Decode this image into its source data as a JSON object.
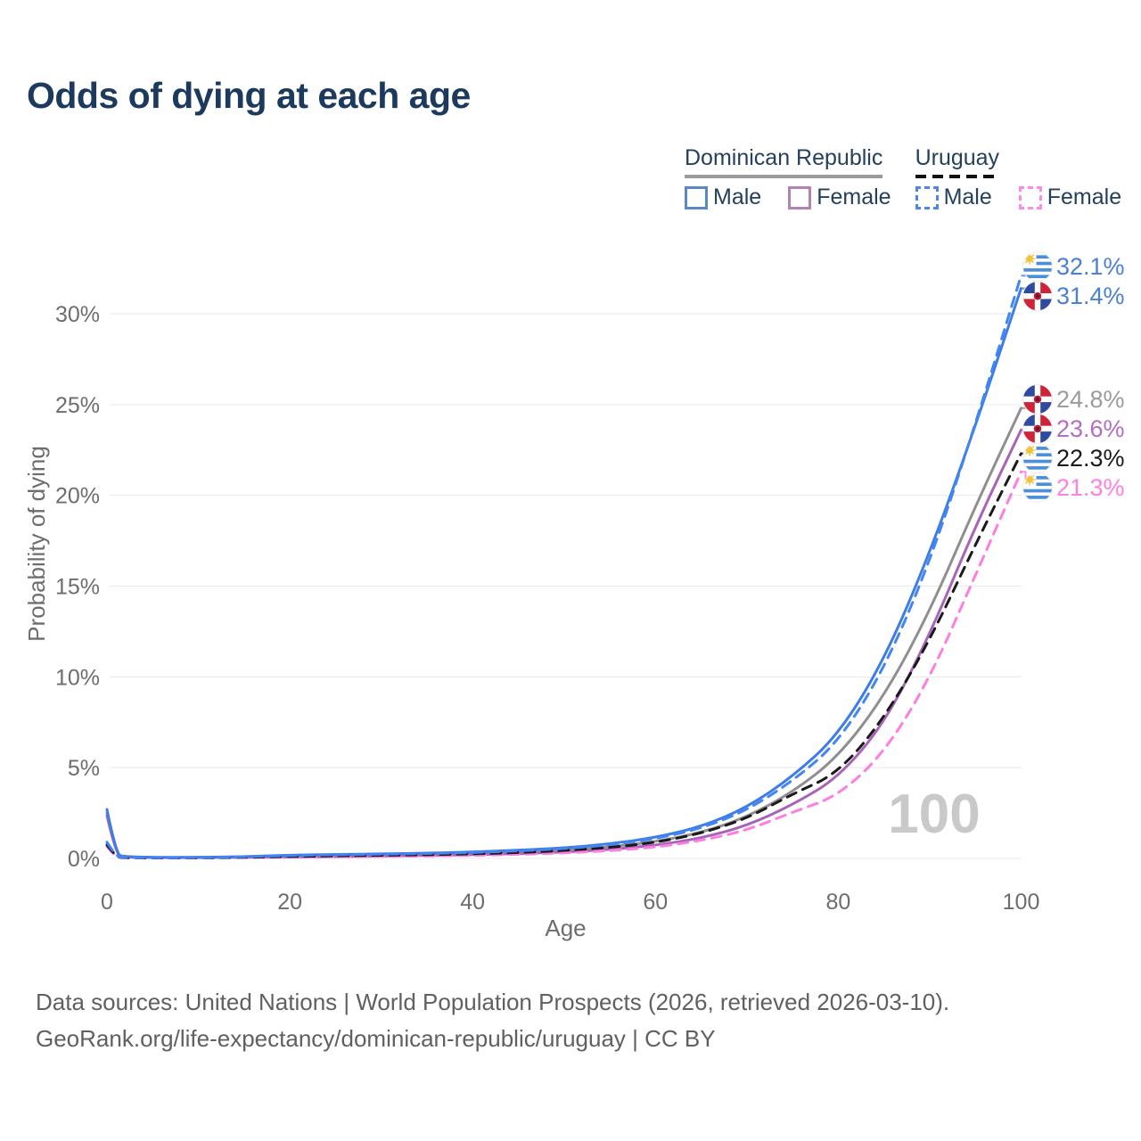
{
  "title": "Odds of dying at each age",
  "legend": {
    "groups": [
      {
        "label": "Dominican Republic",
        "underline_style": "solid",
        "underline_color": "#9a9a9a",
        "items": [
          {
            "label": "Male",
            "color": "#5b87c8",
            "dashed": false
          },
          {
            "label": "Female",
            "color": "#b383b3",
            "dashed": false
          }
        ]
      },
      {
        "label": "Uruguay",
        "underline_style": "dashed",
        "underline_color": "#111111",
        "items": [
          {
            "label": "Male",
            "color": "#4d86ea",
            "dashed": true
          },
          {
            "label": "Female",
            "color": "#ff8ae2",
            "dashed": true
          }
        ]
      }
    ]
  },
  "chart_data": {
    "type": "line",
    "title": "Odds of dying at each age",
    "xlabel": "Age",
    "ylabel": "Probability of dying",
    "xlim": [
      0,
      100
    ],
    "ylim": [
      0,
      33
    ],
    "grid": true,
    "legend_position": "top-right",
    "watermark": "100",
    "x_ticks": [
      {
        "label": "0",
        "value": 0
      },
      {
        "label": "20",
        "value": 20
      },
      {
        "label": "40",
        "value": 40
      },
      {
        "label": "60",
        "value": 60
      },
      {
        "label": "80",
        "value": 80
      },
      {
        "label": "100",
        "value": 100
      }
    ],
    "y_ticks": [
      {
        "label": "0%",
        "value": 0
      },
      {
        "label": "5%",
        "value": 5
      },
      {
        "label": "10%",
        "value": 10
      },
      {
        "label": "15%",
        "value": 15
      },
      {
        "label": "20%",
        "value": 20
      },
      {
        "label": "25%",
        "value": 25
      },
      {
        "label": "30%",
        "value": 30
      }
    ],
    "ages": [
      0,
      1,
      2,
      5,
      10,
      15,
      20,
      25,
      30,
      35,
      40,
      45,
      50,
      55,
      60,
      65,
      70,
      75,
      80,
      85,
      90,
      95,
      100
    ],
    "series": [
      {
        "key": "dominican-republic-total",
        "name": "Dominican Republic",
        "flag": "do",
        "color": "#8f8f8f",
        "dashed": false,
        "end_label": "24.8%",
        "end_value": 24.8,
        "label_color": "#9b9b9b",
        "values": [
          2.5,
          0.17,
          0.09,
          0.05,
          0.05,
          0.08,
          0.13,
          0.16,
          0.19,
          0.22,
          0.27,
          0.35,
          0.46,
          0.63,
          0.92,
          1.42,
          2.28,
          3.65,
          5.6,
          8.9,
          13.6,
          19.4,
          24.8
        ]
      },
      {
        "key": "dominican-republic-female",
        "name": "Dominican Republic Female",
        "flag": "do",
        "color": "#a864b8",
        "dashed": false,
        "end_label": "23.6%",
        "end_value": 23.6,
        "label_color": "#b36cc2",
        "values": [
          2.35,
          0.15,
          0.08,
          0.05,
          0.04,
          0.06,
          0.08,
          0.1,
          0.13,
          0.16,
          0.2,
          0.26,
          0.35,
          0.49,
          0.72,
          1.12,
          1.8,
          2.95,
          4.45,
          7.4,
          12.3,
          18.3,
          23.6
        ]
      },
      {
        "key": "uruguay-female",
        "name": "Uruguay Female",
        "flag": "uy",
        "color": "#ff7de1",
        "dashed": true,
        "end_label": "21.3%",
        "end_value": 21.3,
        "label_color": "#ff80e4",
        "values": [
          0.65,
          0.05,
          0.03,
          0.03,
          0.03,
          0.05,
          0.07,
          0.09,
          0.11,
          0.13,
          0.17,
          0.22,
          0.3,
          0.42,
          0.62,
          0.98,
          1.55,
          2.55,
          3.45,
          5.8,
          9.9,
          15.6,
          21.3
        ]
      },
      {
        "key": "uruguay-total",
        "name": "Uruguay",
        "flag": "uy",
        "color": "#1a1a1a",
        "dashed": true,
        "end_label": "22.3%",
        "end_value": 22.3,
        "label_color": "#1a1a1a",
        "values": [
          0.75,
          0.07,
          0.04,
          0.03,
          0.03,
          0.06,
          0.11,
          0.14,
          0.17,
          0.2,
          0.25,
          0.32,
          0.43,
          0.6,
          0.88,
          1.38,
          2.2,
          3.55,
          4.7,
          7.7,
          12.0,
          17.3,
          22.3
        ]
      },
      {
        "key": "dominican-republic-male",
        "name": "Dominican Republic Male",
        "flag": "do",
        "color": "#3e7de6",
        "dashed": false,
        "end_label": "31.4%",
        "end_value": 31.4,
        "label_color": "#4b80d2",
        "values": [
          2.7,
          0.2,
          0.1,
          0.06,
          0.06,
          0.1,
          0.18,
          0.22,
          0.25,
          0.29,
          0.35,
          0.45,
          0.58,
          0.8,
          1.15,
          1.75,
          2.8,
          4.5,
          6.8,
          10.9,
          16.8,
          23.8,
          31.4
        ]
      },
      {
        "key": "uruguay-male",
        "name": "Uruguay Male",
        "flag": "uy",
        "color": "#4285f4",
        "dashed": true,
        "end_label": "32.1%",
        "end_value": 32.1,
        "label_color": "#4b80d2",
        "values": [
          0.9,
          0.08,
          0.05,
          0.04,
          0.04,
          0.09,
          0.16,
          0.2,
          0.23,
          0.27,
          0.32,
          0.41,
          0.54,
          0.74,
          1.08,
          1.65,
          2.65,
          4.25,
          6.4,
          10.4,
          16.3,
          23.9,
          32.1
        ]
      }
    ]
  },
  "footer": {
    "line1": "Data sources: United Nations | World Population Prospects (2026, retrieved 2026-03-10).",
    "line2": "GeoRank.org/life-expectancy/dominican-republic/uruguay | CC BY"
  }
}
